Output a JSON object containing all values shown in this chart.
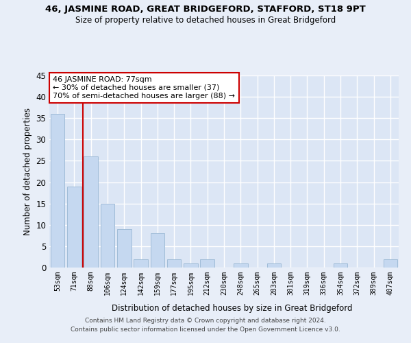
{
  "title": "46, JASMINE ROAD, GREAT BRIDGEFORD, STAFFORD, ST18 9PT",
  "subtitle": "Size of property relative to detached houses in Great Bridgeford",
  "xlabel": "Distribution of detached houses by size in Great Bridgeford",
  "ylabel": "Number of detached properties",
  "categories": [
    "53sqm",
    "71sqm",
    "88sqm",
    "106sqm",
    "124sqm",
    "142sqm",
    "159sqm",
    "177sqm",
    "195sqm",
    "212sqm",
    "230sqm",
    "248sqm",
    "265sqm",
    "283sqm",
    "301sqm",
    "319sqm",
    "336sqm",
    "354sqm",
    "372sqm",
    "389sqm",
    "407sqm"
  ],
  "values": [
    36,
    19,
    26,
    15,
    9,
    2,
    8,
    2,
    1,
    2,
    0,
    1,
    0,
    1,
    0,
    0,
    0,
    1,
    0,
    0,
    2
  ],
  "bar_color": "#c5d8f0",
  "bar_edgecolor": "#a0bcd8",
  "ylim": [
    0,
    45
  ],
  "yticks": [
    0,
    5,
    10,
    15,
    20,
    25,
    30,
    35,
    40,
    45
  ],
  "vline_x_index": 1,
  "vline_color": "#cc0000",
  "annotation_text": "46 JASMINE ROAD: 77sqm\n← 30% of detached houses are smaller (37)\n70% of semi-detached houses are larger (88) →",
  "annotation_box_color": "#ffffff",
  "annotation_box_edgecolor": "#cc0000",
  "bg_color": "#e8eef8",
  "plot_bg_color": "#dce6f5",
  "grid_color": "#ffffff",
  "footer_line1": "Contains HM Land Registry data © Crown copyright and database right 2024.",
  "footer_line2": "Contains public sector information licensed under the Open Government Licence v3.0."
}
